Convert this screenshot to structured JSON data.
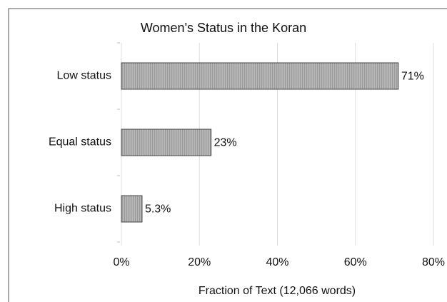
{
  "chart_data": {
    "type": "bar",
    "orientation": "horizontal",
    "title": "Women's Status in the Koran",
    "x_label": "Fraction of Text (12,066 words)",
    "categories": [
      "Low status",
      "Equal status",
      "High status"
    ],
    "values": [
      71,
      23,
      5.3
    ],
    "value_labels": [
      "71%",
      "23%",
      "5.3%"
    ],
    "color": "#b8b8b8",
    "xlim": [
      0,
      80
    ],
    "xticks": [
      {
        "value": 0,
        "label": "0%"
      },
      {
        "value": 20,
        "label": "20%"
      },
      {
        "value": 40,
        "label": "40%"
      },
      {
        "value": 60,
        "label": "60%"
      },
      {
        "value": 80,
        "label": "80%"
      }
    ],
    "grid": true
  }
}
